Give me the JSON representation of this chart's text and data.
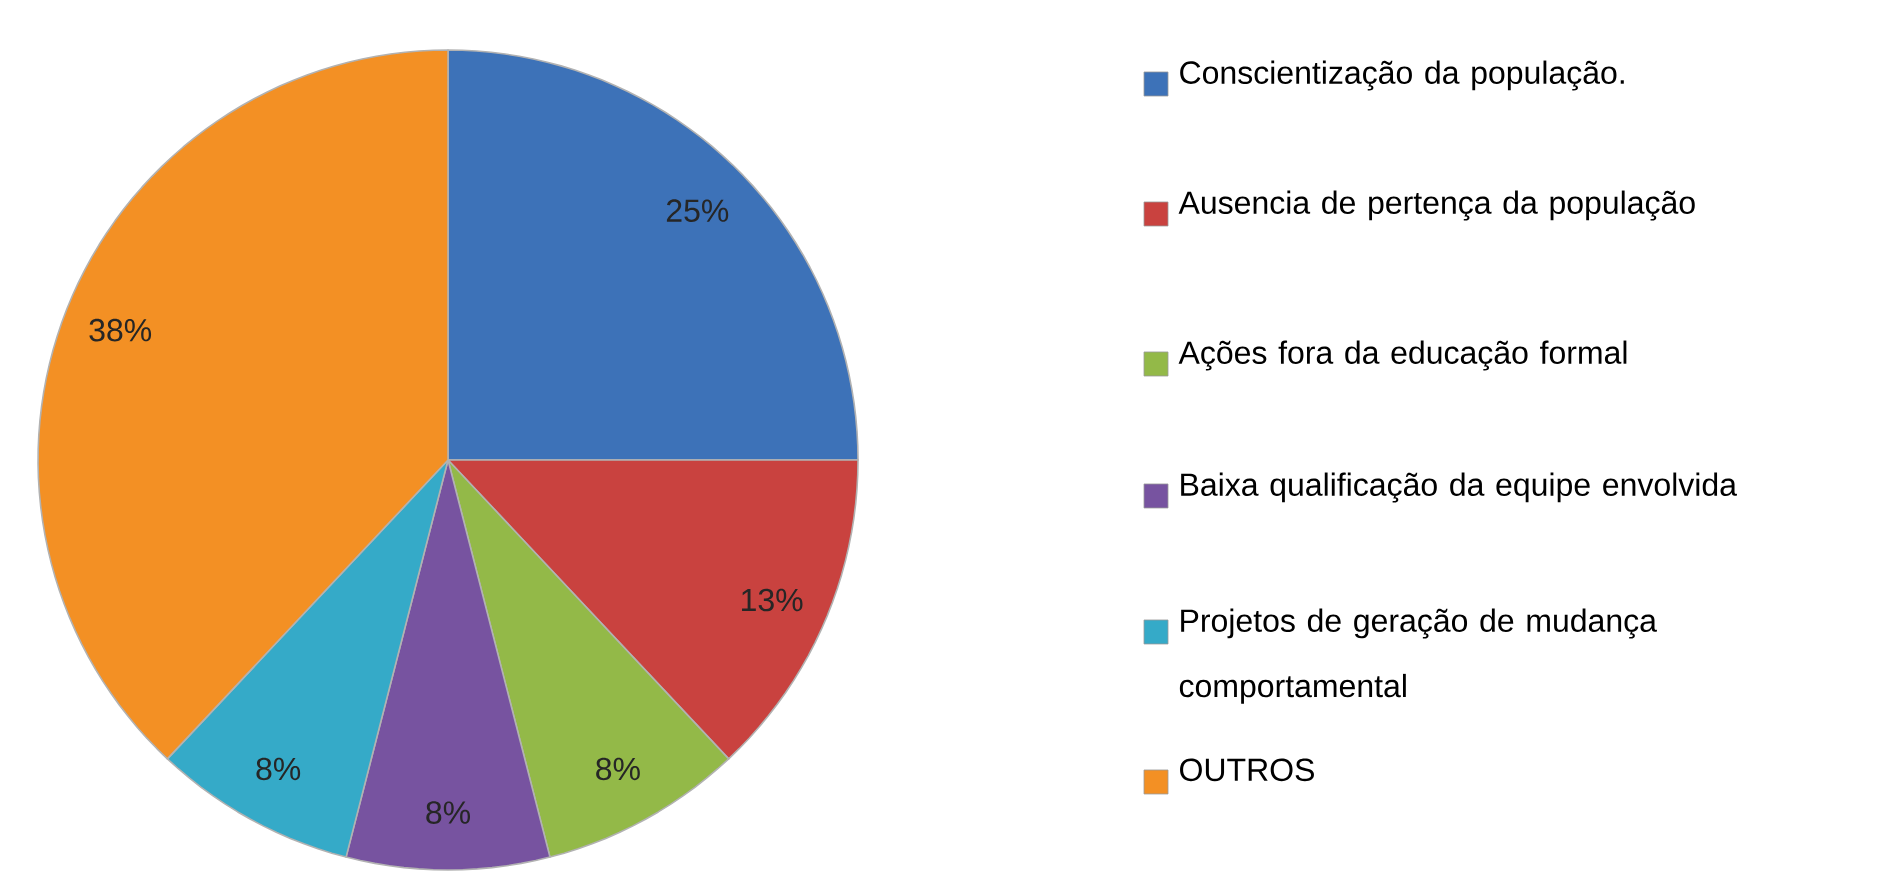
{
  "chart_data": {
    "type": "pie",
    "categories": [
      "Conscientização da população.",
      "Ausencia de pertença da população",
      "Ações fora da educação formal",
      "Baixa qualificação da equipe envolvida",
      "Projetos de geração de mudança comportamental",
      "OUTROS"
    ],
    "values": [
      25,
      13,
      8,
      8,
      8,
      38
    ],
    "colors": [
      "#3d72b8",
      "#c9423f",
      "#93b948",
      "#7753a0",
      "#35aac8",
      "#f39024"
    ],
    "value_labels": [
      "25%",
      "13%",
      "8%",
      "8%",
      "8%",
      "38%"
    ],
    "legend": "right"
  }
}
